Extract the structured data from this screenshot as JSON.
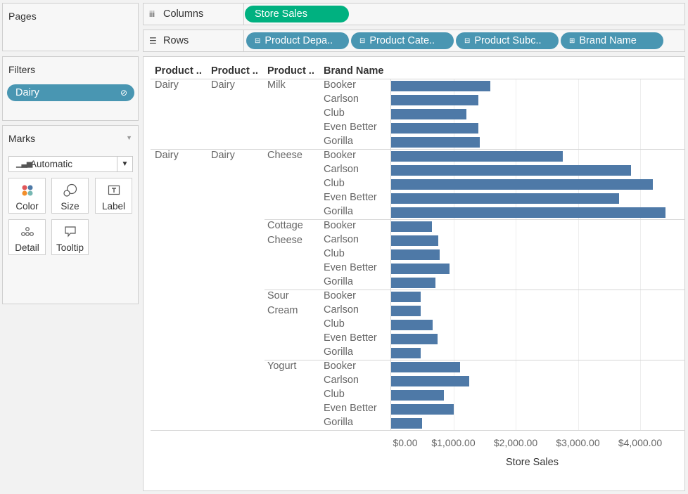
{
  "pages": {
    "title": "Pages"
  },
  "filters": {
    "title": "Filters",
    "pills": [
      {
        "label": "Dairy",
        "icon": "link-icon"
      }
    ]
  },
  "marks": {
    "title": "Marks",
    "type": "Automatic",
    "buttons": {
      "color": "Color",
      "size": "Size",
      "label": "Label",
      "detail": "Detail",
      "tooltip": "Tooltip"
    }
  },
  "shelves": {
    "columns": {
      "label": "Columns",
      "pills": [
        "Store Sales"
      ]
    },
    "rows": {
      "label": "Rows",
      "pills": [
        "Product Depa..",
        "Product Cate..",
        "Product Subc..",
        "Brand Name"
      ]
    }
  },
  "view": {
    "headers": [
      "Product ..",
      "Product ..",
      "Product ..",
      "Brand Name"
    ],
    "groups": [
      {
        "department": "Dairy",
        "category": "Dairy",
        "subcategories": [
          {
            "name": [
              "Milk"
            ]
          }
        ]
      },
      {
        "department": "Dairy",
        "category": "Dairy",
        "subcategories": [
          {
            "name": [
              "Cheese"
            ]
          },
          {
            "name": [
              "Cottage",
              "Cheese"
            ]
          },
          {
            "name": [
              "Sour",
              "Cream"
            ]
          },
          {
            "name": [
              "Yogurt"
            ]
          }
        ]
      }
    ]
  },
  "colors": {
    "bar": "#4e79a7",
    "columns_pill": "#00b180",
    "dimension_pill": "#4996b2"
  },
  "chart_data": {
    "type": "bar",
    "orientation": "horizontal",
    "xlabel": "Store Sales",
    "xlim": [
      0,
      4400
    ],
    "x_ticks": [
      "$0.00",
      "$1,000.00",
      "$2,000.00",
      "$3,000.00",
      "$4,000.00"
    ],
    "tick_values": [
      0,
      1000,
      2000,
      3000,
      4000
    ],
    "brands": [
      "Booker",
      "Carlson",
      "Club",
      "Even Better",
      "Gorilla"
    ],
    "series": [
      {
        "subcategory": "Milk",
        "values": [
          1590,
          1400,
          1210,
          1400,
          1420
        ]
      },
      {
        "subcategory": "Cheese",
        "values": [
          2760,
          3850,
          4200,
          3660,
          4410
        ]
      },
      {
        "subcategory": "Cottage Cheese",
        "values": [
          660,
          760,
          780,
          940,
          710
        ]
      },
      {
        "subcategory": "Sour Cream",
        "values": [
          480,
          470,
          670,
          750,
          480
        ]
      },
      {
        "subcategory": "Yogurt",
        "values": [
          1110,
          1250,
          850,
          1000,
          500
        ]
      }
    ],
    "grid": true
  }
}
